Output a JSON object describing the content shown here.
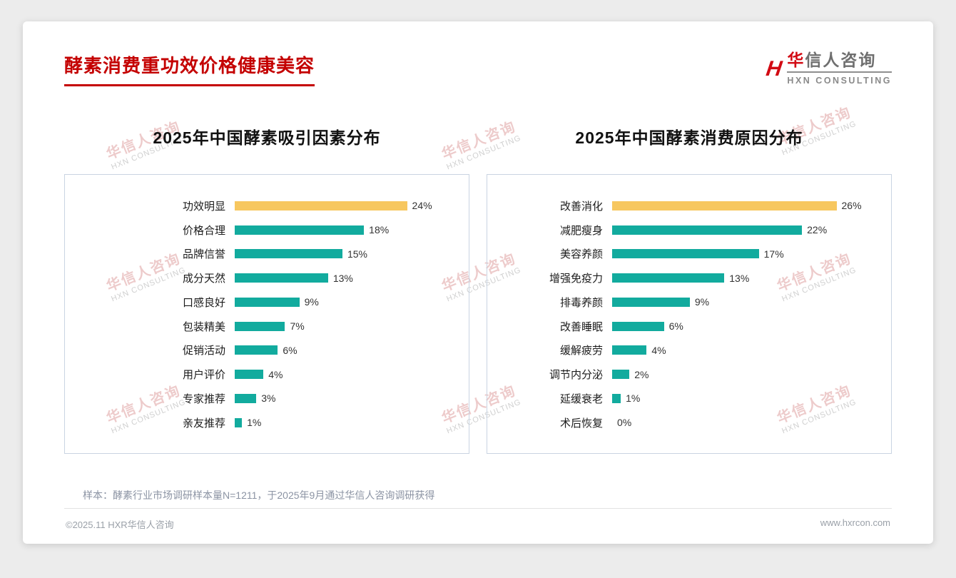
{
  "page": {
    "title": "酵素消费重功效价格健康美容",
    "logo": {
      "mark": "H",
      "line1_accent": "华",
      "line1_rest": "信人咨询",
      "line2": "HXN CONSULTING"
    },
    "footnote": "样本：酵素行业市场调研样本量N=1211，于2025年9月通过华信人咨询调研获得",
    "copyright": "©2025.11 HXR华信人咨询",
    "website": "www.hxrcon.com",
    "watermark": {
      "cn": "华信人咨询",
      "en": "HXN CONSULTING"
    }
  },
  "colors": {
    "teal": "#12ab9e",
    "gold": "#f7c75f",
    "brand_red": "#c40000"
  },
  "chart_data": [
    {
      "type": "bar",
      "orientation": "horizontal",
      "title": "2025年中国酵素吸引因素分布",
      "categories": [
        "功效明显",
        "价格合理",
        "品牌信誉",
        "成分天然",
        "口感良好",
        "包装精美",
        "促销活动",
        "用户评价",
        "专家推荐",
        "亲友推荐"
      ],
      "values": [
        24,
        18,
        15,
        13,
        9,
        7,
        6,
        4,
        3,
        1
      ],
      "value_labels": [
        "24%",
        "18%",
        "15%",
        "13%",
        "9%",
        "7%",
        "6%",
        "4%",
        "3%",
        "1%"
      ],
      "highlight_index": 0,
      "xlim": [
        0,
        31
      ],
      "grid": false,
      "legend": false
    },
    {
      "type": "bar",
      "orientation": "horizontal",
      "title": "2025年中国酵素消费原因分布",
      "categories": [
        "改善消化",
        "减肥瘦身",
        "美容养颜",
        "增强免疫力",
        "排毒养颜",
        "改善睡眠",
        "缓解疲劳",
        "调节内分泌",
        "延缓衰老",
        "术后恢复"
      ],
      "values": [
        26,
        22,
        17,
        13,
        9,
        6,
        4,
        2,
        1,
        0
      ],
      "value_labels": [
        "26%",
        "22%",
        "17%",
        "13%",
        "9%",
        "6%",
        "4%",
        "2%",
        "1%",
        "0%"
      ],
      "highlight_index": 0,
      "xlim": [
        0,
        31
      ],
      "grid": false,
      "legend": false
    }
  ]
}
